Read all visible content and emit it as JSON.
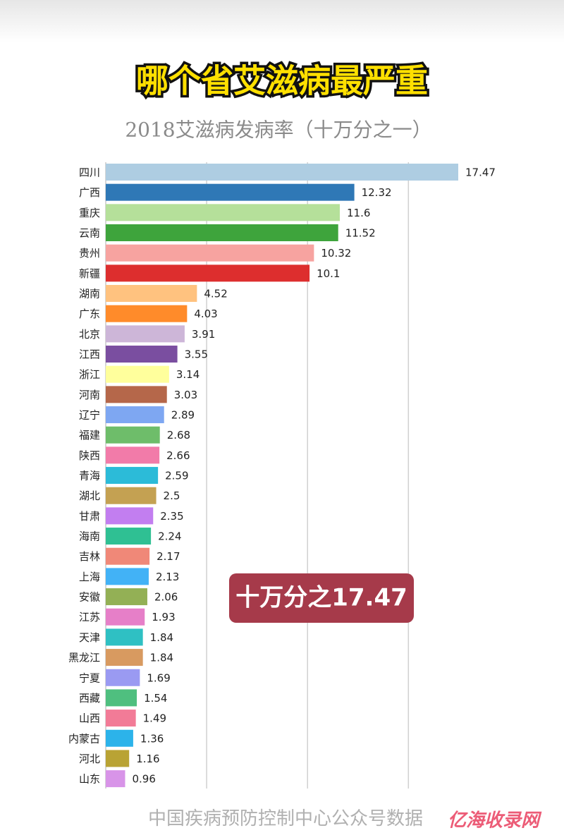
{
  "chart_data": {
    "type": "barh",
    "title": "哪个省艾滋病最严重",
    "subtitle": "2018艾滋病发病率（十万分之一）",
    "annotation": "十万分之17.47",
    "source": "中国疾病预防控制中心公众号数据",
    "watermark": "亿海收录网",
    "categories": [
      "四川",
      "广西",
      "重庆",
      "云南",
      "贵州",
      "新疆",
      "湖南",
      "广东",
      "北京",
      "江西",
      "浙江",
      "河南",
      "辽宁",
      "福建",
      "陕西",
      "青海",
      "湖北",
      "甘肃",
      "海南",
      "吉林",
      "上海",
      "安徽",
      "江苏",
      "天津",
      "黑龙江",
      "宁夏",
      "西藏",
      "山西",
      "内蒙古",
      "河北",
      "山东"
    ],
    "values": [
      17.47,
      12.32,
      11.6,
      11.52,
      10.32,
      10.1,
      4.52,
      4.03,
      3.91,
      3.55,
      3.14,
      3.03,
      2.89,
      2.68,
      2.66,
      2.59,
      2.5,
      2.35,
      2.24,
      2.17,
      2.13,
      2.06,
      1.93,
      1.84,
      1.84,
      1.69,
      1.54,
      1.49,
      1.36,
      1.16,
      0.96
    ],
    "colors": [
      "#aecde2",
      "#2f78b6",
      "#b5e09a",
      "#3ea43c",
      "#f7a3a0",
      "#dd2e2e",
      "#ffc27f",
      "#ff8b2a",
      "#cdb6d8",
      "#7a4ea0",
      "#ffff9c",
      "#b5674a",
      "#7ea7f2",
      "#6ebd6a",
      "#f27ba9",
      "#2cbbd8",
      "#c4a152",
      "#c27ef0",
      "#2fc093",
      "#f08878",
      "#42b2f6",
      "#93b055",
      "#e67fc8",
      "#2fc0c3",
      "#d89a60",
      "#9a9af2",
      "#4fbf7f",
      "#f27b97",
      "#2cb3ea",
      "#b9a334",
      "#d894e8"
    ],
    "xlim": [
      0,
      17.47
    ],
    "xticks": [
      5,
      10,
      15
    ],
    "grid": true
  }
}
